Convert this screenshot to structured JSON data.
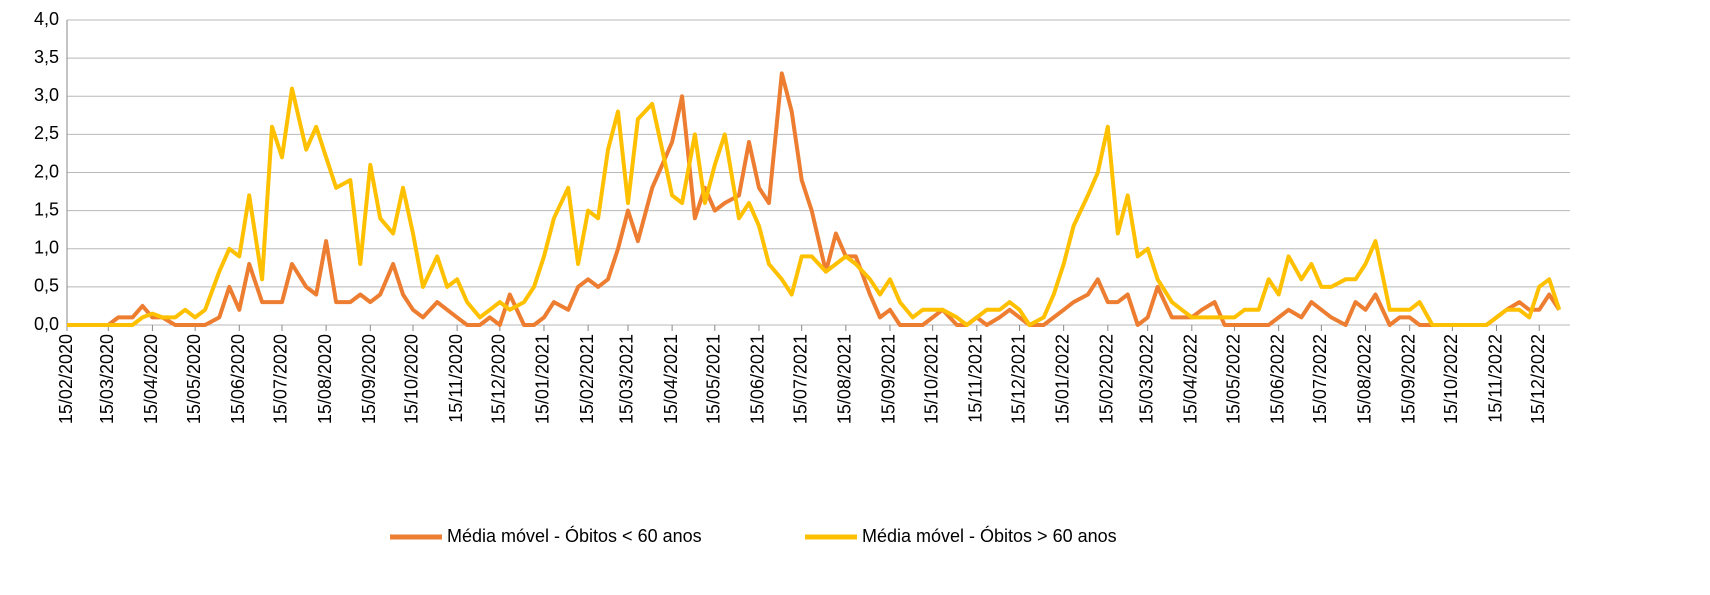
{
  "chart_data": {
    "type": "line",
    "x": [
      "15/02/2020",
      "22/02/2020",
      "01/03/2020",
      "08/03/2020",
      "15/03/2020",
      "22/03/2020",
      "01/04/2020",
      "08/04/2020",
      "15/04/2020",
      "22/04/2020",
      "01/05/2020",
      "08/05/2020",
      "15/05/2020",
      "22/05/2020",
      "01/06/2020",
      "08/06/2020",
      "15/06/2020",
      "22/06/2020",
      "01/07/2020",
      "08/07/2020",
      "15/07/2020",
      "22/07/2020",
      "01/08/2020",
      "08/08/2020",
      "15/08/2020",
      "22/08/2020",
      "01/09/2020",
      "08/09/2020",
      "15/09/2020",
      "22/09/2020",
      "01/10/2020",
      "08/10/2020",
      "15/10/2020",
      "22/10/2020",
      "01/11/2020",
      "08/11/2020",
      "15/11/2020",
      "22/11/2020",
      "01/12/2020",
      "08/12/2020",
      "15/12/2020",
      "22/12/2020",
      "01/01/2021",
      "08/01/2021",
      "15/01/2021",
      "22/01/2021",
      "01/02/2021",
      "08/02/2021",
      "15/02/2021",
      "22/02/2021",
      "01/03/2021",
      "08/03/2021",
      "15/03/2021",
      "22/03/2021",
      "01/04/2021",
      "08/04/2021",
      "15/04/2021",
      "22/04/2021",
      "01/05/2021",
      "08/05/2021",
      "15/05/2021",
      "22/05/2021",
      "01/06/2021",
      "08/06/2021",
      "15/06/2021",
      "22/06/2021",
      "01/07/2021",
      "08/07/2021",
      "15/07/2021",
      "22/07/2021",
      "01/08/2021",
      "08/08/2021",
      "15/08/2021",
      "22/08/2021",
      "01/09/2021",
      "08/09/2021",
      "15/09/2021",
      "22/09/2021",
      "01/10/2021",
      "08/10/2021",
      "15/10/2021",
      "22/10/2021",
      "01/11/2021",
      "08/11/2021",
      "15/11/2021",
      "22/11/2021",
      "01/12/2021",
      "08/12/2021",
      "15/12/2021",
      "22/12/2021",
      "01/01/2022",
      "08/01/2022",
      "15/01/2022",
      "22/01/2022",
      "01/02/2022",
      "08/02/2022",
      "15/02/2022",
      "22/02/2022",
      "01/03/2022",
      "08/03/2022",
      "15/03/2022",
      "22/03/2022",
      "01/04/2022",
      "08/04/2022",
      "15/04/2022",
      "22/04/2022",
      "01/05/2022",
      "08/05/2022",
      "15/05/2022",
      "22/05/2022",
      "01/06/2022",
      "08/06/2022",
      "15/06/2022",
      "22/06/2022",
      "01/07/2022",
      "08/07/2022",
      "15/07/2022",
      "22/07/2022",
      "01/08/2022",
      "08/08/2022",
      "15/08/2022",
      "22/08/2022",
      "01/09/2022",
      "08/09/2022",
      "15/09/2022",
      "22/09/2022",
      "01/10/2022",
      "08/10/2022",
      "15/10/2022",
      "22/10/2022",
      "01/11/2022",
      "08/11/2022",
      "15/11/2022",
      "22/11/2022",
      "01/12/2022",
      "08/12/2022",
      "15/12/2022",
      "22/12/2022",
      "29/12/2022"
    ],
    "series": [
      {
        "name": "Média móvel - Óbitos < 60 anos",
        "color": "#ed7d31",
        "values": [
          0,
          0,
          0,
          0,
          0,
          0.1,
          0.1,
          0.25,
          0.1,
          0.1,
          0,
          0,
          0,
          0,
          0.1,
          0.5,
          0.2,
          0.8,
          0.3,
          0.3,
          0.3,
          0.8,
          0.5,
          0.4,
          1.1,
          0.3,
          0.3,
          0.4,
          0.3,
          0.4,
          0.8,
          0.4,
          0.2,
          0.1,
          0.3,
          0.2,
          0.1,
          0,
          0,
          0.1,
          0,
          0.4,
          0,
          0,
          0.1,
          0.3,
          0.2,
          0.5,
          0.6,
          0.5,
          0.6,
          1.0,
          1.5,
          1.1,
          1.8,
          2.1,
          2.4,
          3.0,
          1.4,
          1.8,
          1.5,
          1.6,
          1.7,
          2.4,
          1.8,
          1.6,
          3.3,
          2.8,
          1.9,
          1.5,
          0.7,
          1.2,
          0.9,
          0.9,
          0.4,
          0.1,
          0.2,
          0,
          0,
          0,
          0.1,
          0.2,
          0,
          0,
          0.1,
          0,
          0.1,
          0.2,
          0.1,
          0,
          0,
          0.1,
          0.2,
          0.3,
          0.4,
          0.6,
          0.3,
          0.3,
          0.4,
          0,
          0.1,
          0.5,
          0.1,
          0.1,
          0.1,
          0.2,
          0.3,
          0,
          0,
          0,
          0,
          0,
          0.1,
          0.2,
          0.1,
          0.3,
          0.2,
          0.1,
          0,
          0.3,
          0.2,
          0.4,
          0,
          0.1,
          0.1,
          0,
          0,
          0,
          0,
          0,
          0,
          0,
          0.1,
          0.2,
          0.3,
          0.2,
          0.2,
          0.4,
          0.2
        ]
      },
      {
        "name": "Média móvel - Óbitos > 60 anos",
        "color": "#ffc000",
        "values": [
          0,
          0,
          0,
          0,
          0,
          0,
          0,
          0.1,
          0.15,
          0.1,
          0.1,
          0.2,
          0.1,
          0.2,
          0.7,
          1.0,
          0.9,
          1.7,
          0.6,
          2.6,
          2.2,
          3.1,
          2.3,
          2.6,
          2.2,
          1.8,
          1.9,
          0.8,
          2.1,
          1.4,
          1.2,
          1.8,
          1.2,
          0.5,
          0.9,
          0.5,
          0.6,
          0.3,
          0.1,
          0.2,
          0.3,
          0.2,
          0.3,
          0.5,
          0.9,
          1.4,
          1.8,
          0.8,
          1.5,
          1.4,
          2.3,
          2.8,
          1.6,
          2.7,
          2.9,
          2.3,
          1.7,
          1.6,
          2.5,
          1.6,
          2.1,
          2.5,
          1.4,
          1.6,
          1.3,
          0.8,
          0.6,
          0.4,
          0.9,
          0.9,
          0.7,
          0.8,
          0.9,
          0.8,
          0.6,
          0.4,
          0.6,
          0.3,
          0.1,
          0.2,
          0.2,
          0.2,
          0.1,
          0,
          0.1,
          0.2,
          0.2,
          0.3,
          0.2,
          0,
          0.1,
          0.4,
          0.8,
          1.3,
          1.7,
          2.0,
          2.6,
          1.2,
          1.7,
          0.9,
          1.0,
          0.6,
          0.3,
          0.2,
          0.1,
          0.1,
          0.1,
          0.1,
          0.1,
          0.2,
          0.2,
          0.6,
          0.4,
          0.9,
          0.6,
          0.8,
          0.5,
          0.5,
          0.6,
          0.6,
          0.8,
          1.1,
          0.2,
          0.2,
          0.2,
          0.3,
          0,
          0,
          0,
          0,
          0,
          0,
          0.1,
          0.2,
          0.2,
          0.1,
          0.5,
          0.6,
          0.2
        ]
      }
    ],
    "xlim": [
      "15/02/2020",
      "31/12/2022"
    ],
    "xticks": [
      "15/02/2020",
      "15/03/2020",
      "15/04/2020",
      "15/05/2020",
      "15/06/2020",
      "15/07/2020",
      "15/08/2020",
      "15/09/2020",
      "15/10/2020",
      "15/11/2020",
      "15/12/2020",
      "15/01/2021",
      "15/02/2021",
      "15/03/2021",
      "15/04/2021",
      "15/05/2021",
      "15/06/2021",
      "15/07/2021",
      "15/08/2021",
      "15/09/2021",
      "15/10/2021",
      "15/11/2021",
      "15/12/2021",
      "15/01/2022",
      "15/02/2022",
      "15/03/2022",
      "15/04/2022",
      "15/05/2022",
      "15/06/2022",
      "15/07/2022",
      "15/08/2022",
      "15/09/2022",
      "15/10/2022",
      "15/11/2022",
      "15/12/2022"
    ],
    "ylim": [
      0,
      4
    ],
    "yticks": [
      {
        "value": 0,
        "label": "0,0"
      },
      {
        "value": 0.5,
        "label": "0,5"
      },
      {
        "value": 1,
        "label": "1,0"
      },
      {
        "value": 1.5,
        "label": "1,5"
      },
      {
        "value": 2,
        "label": "2,0"
      },
      {
        "value": 2.5,
        "label": "2,5"
      },
      {
        "value": 3,
        "label": "3,0"
      },
      {
        "value": 3.5,
        "label": "3,5"
      },
      {
        "value": 4,
        "label": "4,0"
      }
    ],
    "grid": true,
    "legend": "bottom"
  }
}
